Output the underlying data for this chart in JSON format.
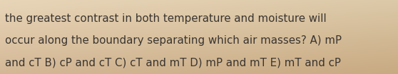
{
  "text_lines": [
    "the greatest contrast in both temperature and moisture will",
    "occur along the boundary separating which air masses? A) mP",
    "and cT B) cP and cT C) cT and mT D) mP and mT E) mT and cP"
  ],
  "bg_color_tl": "#e8d5b8",
  "bg_color_tr": "#dcc9a8",
  "bg_color_bl": "#d4b896",
  "bg_color_br": "#c8aa82",
  "text_color": "#3a3530",
  "font_size": 10.8,
  "fig_width": 5.58,
  "fig_height": 1.05,
  "dpi": 100
}
